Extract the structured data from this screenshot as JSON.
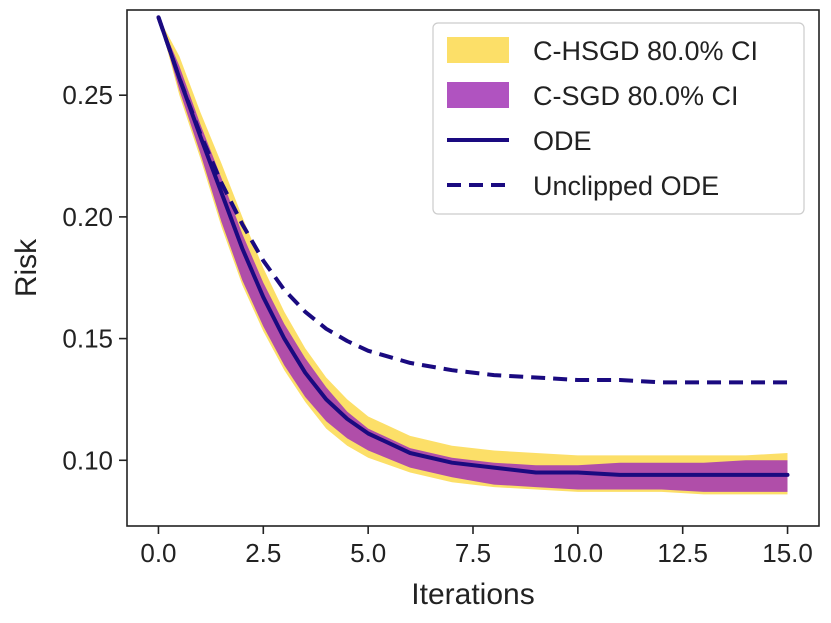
{
  "chart_data": {
    "type": "line",
    "xlabel": "Iterations",
    "ylabel": "Risk",
    "xlim": [
      -0.75,
      15.75
    ],
    "ylim": [
      0.073,
      0.285
    ],
    "xticks": [
      0.0,
      2.5,
      5.0,
      7.5,
      10.0,
      12.5,
      15.0
    ],
    "xtick_labels": [
      "0.0",
      "2.5",
      "5.0",
      "7.5",
      "10.0",
      "12.5",
      "15.0"
    ],
    "yticks": [
      0.1,
      0.15,
      0.2,
      0.25
    ],
    "ytick_labels": [
      "0.10",
      "0.15",
      "0.20",
      "0.25"
    ],
    "legend_position": "top-right",
    "series": [
      {
        "name": "C-HSGD 80.0% CI",
        "kind": "band",
        "color": "#FCD94D",
        "x": [
          0,
          0.5,
          1,
          1.5,
          2,
          2.5,
          3,
          3.5,
          4,
          4.5,
          5,
          6,
          7,
          8,
          9,
          10,
          11,
          12,
          13,
          14,
          15
        ],
        "lower": [
          0.282,
          0.25,
          0.224,
          0.196,
          0.172,
          0.153,
          0.137,
          0.124,
          0.113,
          0.106,
          0.101,
          0.095,
          0.091,
          0.089,
          0.088,
          0.087,
          0.087,
          0.087,
          0.086,
          0.086,
          0.086
        ],
        "upper": [
          0.282,
          0.266,
          0.243,
          0.222,
          0.2,
          0.179,
          0.161,
          0.146,
          0.134,
          0.125,
          0.118,
          0.11,
          0.106,
          0.104,
          0.103,
          0.102,
          0.102,
          0.102,
          0.102,
          0.102,
          0.103
        ]
      },
      {
        "name": "C-SGD 80.0% CI",
        "kind": "band",
        "color": "#A235B5",
        "x": [
          0,
          0.5,
          1,
          1.5,
          2,
          2.5,
          3,
          3.5,
          4,
          4.5,
          5,
          6,
          7,
          8,
          9,
          10,
          11,
          12,
          13,
          14,
          15
        ],
        "lower": [
          0.282,
          0.252,
          0.226,
          0.198,
          0.174,
          0.155,
          0.139,
          0.126,
          0.116,
          0.109,
          0.104,
          0.097,
          0.093,
          0.09,
          0.089,
          0.088,
          0.088,
          0.088,
          0.087,
          0.087,
          0.087
        ],
        "upper": [
          0.282,
          0.262,
          0.238,
          0.216,
          0.193,
          0.173,
          0.156,
          0.142,
          0.13,
          0.12,
          0.113,
          0.105,
          0.101,
          0.099,
          0.098,
          0.098,
          0.099,
          0.099,
          0.099,
          0.1,
          0.1
        ]
      },
      {
        "name": "ODE",
        "kind": "line",
        "style": "solid",
        "color": "#1A0A80",
        "x": [
          0,
          0.5,
          1,
          1.5,
          2,
          2.5,
          3,
          3.5,
          4,
          4.5,
          5,
          6,
          7,
          8,
          9,
          10,
          11,
          12,
          13,
          14,
          15
        ],
        "values": [
          0.282,
          0.257,
          0.233,
          0.21,
          0.187,
          0.167,
          0.15,
          0.136,
          0.125,
          0.117,
          0.111,
          0.103,
          0.099,
          0.097,
          0.095,
          0.095,
          0.094,
          0.094,
          0.094,
          0.094,
          0.094
        ]
      },
      {
        "name": "Unclipped ODE",
        "kind": "line",
        "style": "dashed",
        "color": "#1A0A80",
        "x": [
          0,
          0.5,
          1,
          1.5,
          2,
          2.5,
          3,
          3.5,
          4,
          4.5,
          5,
          6,
          7,
          8,
          9,
          10,
          11,
          12,
          13,
          14,
          15
        ],
        "values": [
          0.282,
          0.257,
          0.234,
          0.214,
          0.197,
          0.182,
          0.17,
          0.161,
          0.154,
          0.149,
          0.145,
          0.14,
          0.137,
          0.135,
          0.134,
          0.133,
          0.133,
          0.132,
          0.132,
          0.132,
          0.132
        ]
      }
    ]
  }
}
